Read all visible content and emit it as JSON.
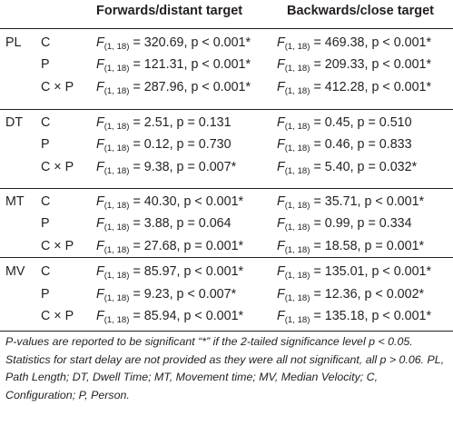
{
  "columns": {
    "measure": "",
    "factor": "",
    "forwards": "Forwards/distant target",
    "backwards": "Backwards/close target"
  },
  "groups": [
    {
      "measure": "PL",
      "rows": [
        {
          "factor": "C",
          "forwards": {
            "df": "(1, 18)",
            "F": "320.69",
            "p": "p < 0.001*"
          },
          "backwards": {
            "df": "(1, 18)",
            "F": "469.38",
            "p": "p < 0.001*"
          }
        },
        {
          "factor": "P",
          "forwards": {
            "df": "(1, 18)",
            "F": "121.31",
            "p": "p < 0.001*"
          },
          "backwards": {
            "df": "(1, 18)",
            "F": "209.33",
            "p": "p < 0.001*"
          }
        },
        {
          "factor": "C × P",
          "forwards": {
            "df": "(1, 18)",
            "F": "287.96",
            "p": "p < 0.001*"
          },
          "backwards": {
            "df": "(1, 18)",
            "F": "412.28",
            "p": "p < 0.001*"
          }
        }
      ]
    },
    {
      "measure": "DT",
      "rows": [
        {
          "factor": "C",
          "forwards": {
            "df": "(1, 18)",
            "F": "2.51",
            "p": "p = 0.131"
          },
          "backwards": {
            "df": "(1, 18)",
            "F": "0.45",
            "p": "p = 0.510"
          }
        },
        {
          "factor": "P",
          "forwards": {
            "df": "(1, 18)",
            "F": "0.12",
            "p": "p = 0.730"
          },
          "backwards": {
            "df": "(1, 18)",
            "F": "0.46",
            "p": "p = 0.833"
          }
        },
        {
          "factor": "C × P",
          "forwards": {
            "df": "(1, 18)",
            "F": "9.38",
            "p": "p = 0.007*"
          },
          "backwards": {
            "df": "(1, 18)",
            "F": "5.40",
            "p": "p = 0.032*"
          }
        }
      ]
    },
    {
      "measure": "MT",
      "rows": [
        {
          "factor": "C",
          "forwards": {
            "df": "(1, 18)",
            "F": "40.30",
            "p": "p < 0.001*"
          },
          "backwards": {
            "df": "(1, 18)",
            "F": "35.71",
            "p": "p < 0.001*"
          }
        },
        {
          "factor": "P",
          "forwards": {
            "df": "(1, 18)",
            "F": "3.88",
            "p": "p = 0.064"
          },
          "backwards": {
            "df": "(1, 18)",
            "F": "0.99",
            "p": "p = 0.334"
          }
        },
        {
          "factor": "C × P",
          "forwards": {
            "df": "(1, 18)",
            "F": "27.68",
            "p": "p = 0.001*"
          },
          "backwards": {
            "df": "(1, 18)",
            "F": "18.58",
            "p": "p = 0.001*"
          }
        }
      ]
    },
    {
      "measure": "MV",
      "rows": [
        {
          "factor": "C",
          "forwards": {
            "df": "(1, 18)",
            "F": "85.97",
            "p": "p < 0.001*"
          },
          "backwards": {
            "df": "(1, 18)",
            "F": "135.01",
            "p": "p < 0.001*"
          }
        },
        {
          "factor": "P",
          "forwards": {
            "df": "(1, 18)",
            "F": "9.23",
            "p": "p < 0.007*"
          },
          "backwards": {
            "df": "(1, 18)",
            "F": "12.36",
            "p": "p < 0.002*"
          }
        },
        {
          "factor": "C × P",
          "forwards": {
            "df": "(1, 18)",
            "F": "85.94",
            "p": "p < 0.001*"
          },
          "backwards": {
            "df": "(1, 18)",
            "F": "135.18",
            "p": "p < 0.001*"
          }
        }
      ]
    }
  ],
  "footnote": "P-values are reported to be significant “*” if the 2-tailed significance level p < 0.05. Statistics for start delay are not provided as they were all not significant, all p > 0.06. PL, Path Length; DT, Dwell Time; MT, Movement time; MV, Median Velocity; C, Configuration; P, Person."
}
